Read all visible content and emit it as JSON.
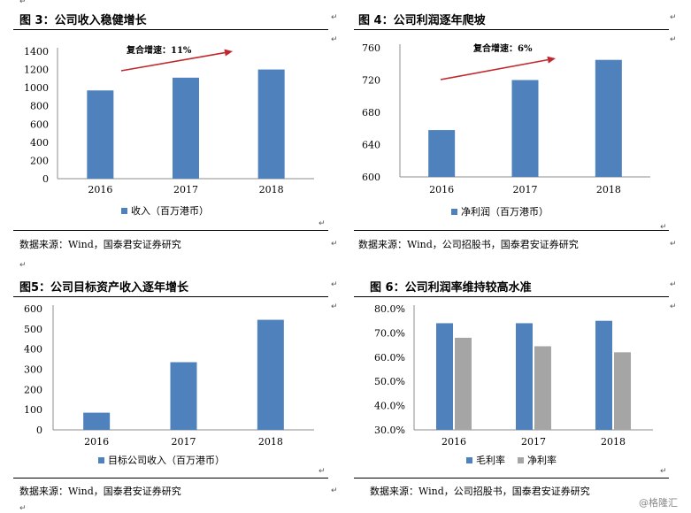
{
  "top_mark": "↵",
  "figures": [
    {
      "title": "图 3：公司收入稳健增长",
      "source": "数据来源：Wind，国泰君安证券研究",
      "annotation": "复合增速：11%"
    },
    {
      "title": "图 4：公司利润逐年爬坡",
      "source": "数据来源：Wind，公司招股书，国泰君安证券研究",
      "annotation": "复合增速：6%"
    },
    {
      "title": "图5：公司目标资产收入逐年增长",
      "source": "数据来源：Wind，国泰君安证券研究",
      "annotation": ""
    },
    {
      "title": "图 6：公司利润率维持较高水准",
      "source": "数据来源：Wind，公司招股书，国泰君安证券研究",
      "annotation": ""
    }
  ],
  "para_mark": "↵",
  "watermark": "@格隆汇",
  "colors": {
    "blue": "#4f81bd",
    "gray": "#a5a5a5",
    "arrow": "#c0282d"
  },
  "chart_data": [
    {
      "type": "bar",
      "categories": [
        "2016",
        "2017",
        "2018"
      ],
      "series": [
        {
          "name": "收入（百万港币）",
          "values": [
            970,
            1110,
            1200
          ]
        }
      ],
      "ylim": [
        0,
        1400
      ],
      "yticks": [
        "0",
        "200",
        "400",
        "600",
        "800",
        "1000",
        "1200",
        "1400"
      ],
      "legend": "bottom"
    },
    {
      "type": "bar",
      "categories": [
        "2016",
        "2017",
        "2018"
      ],
      "series": [
        {
          "name": "净利润（百万港币）",
          "values": [
            658,
            720,
            745
          ]
        }
      ],
      "ylim": [
        600,
        760
      ],
      "yticks": [
        "600",
        "640",
        "680",
        "720",
        "760"
      ],
      "legend": "bottom"
    },
    {
      "type": "bar",
      "categories": [
        "2016",
        "2017",
        "2018"
      ],
      "series": [
        {
          "name": "目标公司收入（百万港币）",
          "values": [
            85,
            335,
            545
          ]
        }
      ],
      "ylim": [
        0,
        600
      ],
      "yticks": [
        "0",
        "100",
        "200",
        "300",
        "400",
        "500",
        "600"
      ],
      "legend": "bottom"
    },
    {
      "type": "bar",
      "categories": [
        "2016",
        "2017",
        "2018"
      ],
      "series": [
        {
          "name": "毛利率",
          "values": [
            74.0,
            74.0,
            75.0
          ]
        },
        {
          "name": "净利率",
          "values": [
            68.0,
            64.5,
            62.0
          ]
        }
      ],
      "ylim": [
        30,
        80
      ],
      "yticks": [
        "30.0%",
        "40.0%",
        "50.0%",
        "60.0%",
        "70.0%",
        "80.0%"
      ],
      "legend": "bottom"
    }
  ]
}
